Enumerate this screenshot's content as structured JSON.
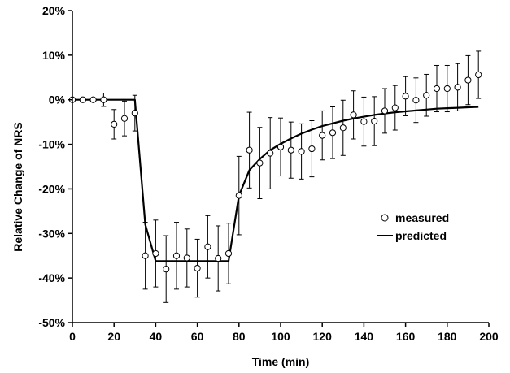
{
  "chart_data": {
    "type": "scatter",
    "xlabel": "Time (min)",
    "ylabel": "Relative Change of NRS",
    "xlim": [
      0,
      200
    ],
    "ylim": [
      -50,
      20
    ],
    "x_ticks": [
      0,
      20,
      40,
      60,
      80,
      100,
      120,
      140,
      160,
      180,
      200
    ],
    "x_tick_labels": [
      "0",
      "20",
      "40",
      "60",
      "80",
      "100",
      "120",
      "140",
      "160",
      "180",
      "200"
    ],
    "y_ticks": [
      20,
      10,
      0,
      -10,
      -20,
      -30,
      -40,
      -50
    ],
    "y_tick_labels": [
      "20%",
      "10%",
      "0%",
      "-10%",
      "-20%",
      "-30%",
      "-40%",
      "-50%"
    ],
    "grid": false,
    "legend_position": "right",
    "legend": [
      "measured",
      "predicted"
    ],
    "series": [
      {
        "name": "measured",
        "kind": "points-with-error-bars",
        "x": [
          0,
          5,
          10,
          15,
          20,
          25,
          30,
          35,
          40,
          45,
          50,
          55,
          60,
          65,
          70,
          75,
          80,
          85,
          90,
          95,
          100,
          105,
          110,
          115,
          120,
          125,
          130,
          135,
          140,
          145,
          150,
          155,
          160,
          165,
          170,
          175,
          180,
          185,
          190,
          195
        ],
        "y": [
          0,
          0,
          0,
          0,
          -5.5,
          -4.2,
          -3,
          -35,
          -34.5,
          -38,
          -35,
          -35.5,
          -37.8,
          -33,
          -35.6,
          -34.5,
          -21.5,
          -11.3,
          -14.2,
          -12,
          -10.6,
          -11.3,
          -11.6,
          -11,
          -8,
          -7.4,
          -6.3,
          -3.4,
          -4.9,
          -4.8,
          -2.5,
          -1.8,
          0.8,
          -0.1,
          1,
          2.5,
          2.5,
          2.8,
          4.4,
          5.6
        ],
        "err": [
          0,
          0,
          0,
          1.5,
          3.3,
          3.9,
          4,
          7.5,
          7.5,
          7.5,
          7.5,
          6.5,
          6.5,
          7,
          7.3,
          6.8,
          8.8,
          8.5,
          8,
          8,
          6.5,
          6.3,
          6.2,
          6.3,
          5.5,
          5.8,
          6.2,
          5.4,
          5.5,
          5.5,
          5,
          5,
          4.4,
          5,
          4.7,
          5.2,
          5.2,
          5.3,
          5.5,
          5.3
        ]
      },
      {
        "name": "predicted",
        "kind": "line",
        "x": [
          0,
          30,
          35,
          40,
          45,
          50,
          55,
          60,
          65,
          70,
          75,
          80,
          85,
          90,
          95,
          100,
          105,
          110,
          115,
          120,
          125,
          130,
          135,
          140,
          145,
          150,
          155,
          160,
          165,
          170,
          175,
          180,
          185,
          190,
          195
        ],
        "y": [
          0,
          0,
          -28,
          -36.2,
          -36.2,
          -36.2,
          -36.2,
          -36.2,
          -36.2,
          -36.2,
          -36.2,
          -21.5,
          -15.8,
          -13.3,
          -11.3,
          -9.9,
          -8.7,
          -7.6,
          -6.7,
          -5.9,
          -5.3,
          -4.7,
          -4.2,
          -3.8,
          -3.4,
          -3.1,
          -2.8,
          -2.6,
          -2.4,
          -2.2,
          -2.0,
          -1.9,
          -1.8,
          -1.7,
          -1.6
        ]
      }
    ]
  }
}
